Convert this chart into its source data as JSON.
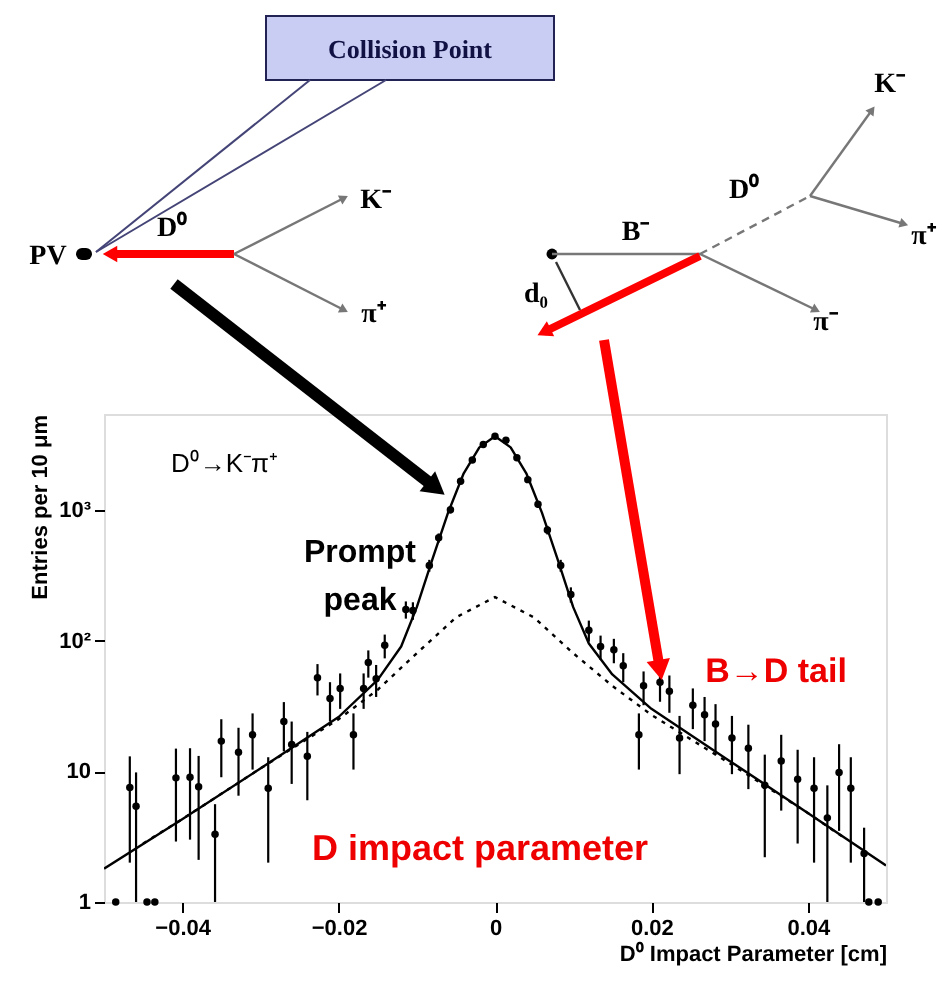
{
  "chart_data": {
    "type": "scatter",
    "xlabel": "D⁰ Impact Parameter [cm]",
    "ylabel": "Entries per 10  μm",
    "xlim": [
      -0.05,
      0.05
    ],
    "xticks": [
      -0.04,
      -0.02,
      0,
      0.02,
      0.04
    ],
    "ylim": [
      1,
      5400
    ],
    "yticks": [
      1,
      10,
      {
        "value": 100,
        "label": "10²"
      },
      {
        "value": 1000,
        "label": "10³"
      }
    ],
    "log": "y",
    "grid": false,
    "series": [
      {
        "marker": "circle",
        "color": "#000000",
        "x": [
          -0.0485,
          -0.0467,
          -0.0459,
          -0.0445,
          -0.0435,
          -0.0408,
          -0.039,
          -0.0379,
          -0.0358,
          -0.035,
          -0.0328,
          -0.031,
          -0.029,
          -0.027,
          -0.026,
          -0.024,
          -0.0227,
          -0.0211,
          -0.0198,
          -0.0181,
          -0.0168,
          -0.0162,
          -0.0152,
          -0.0141,
          -0.0114,
          -0.0105,
          -0.0084,
          -0.0072,
          -0.0057,
          -0.0044,
          -0.0029,
          -0.0015,
          0,
          0.0014,
          0.0028,
          0.0042,
          0.0055,
          0.0067,
          0.0084,
          0.0097,
          0.012,
          0.0135,
          0.0152,
          0.0164,
          0.0184,
          0.019,
          0.0211,
          0.0223,
          0.0236,
          0.0253,
          0.0268,
          0.0282,
          0.0303,
          0.0324,
          0.0345,
          0.0366,
          0.0387,
          0.0408,
          0.0425,
          0.044,
          0.0455,
          0.0472,
          0.0478,
          0.049
        ],
        "values": [
          1,
          7.5,
          5.4,
          1,
          1,
          8.9,
          9,
          7.6,
          3.3,
          17,
          14,
          19,
          7.4,
          24,
          16,
          13,
          52,
          36,
          43,
          19,
          43,
          68,
          51,
          92,
          173,
          170,
          375,
          610,
          1000,
          1650,
          2400,
          3150,
          3650,
          3400,
          2500,
          1700,
          1100,
          700,
          375,
          225,
          120,
          90,
          85,
          64,
          19,
          45,
          48,
          41,
          18,
          32,
          27,
          23,
          18,
          15,
          7.8,
          12,
          8.7,
          7.4,
          4.4,
          9.8,
          7.4,
          2.35,
          1,
          1
        ],
        "errors": [
          null,
          5.5,
          4.4,
          null,
          null,
          6,
          6,
          5.5,
          2.3,
          8,
          7.5,
          8.7,
          5.4,
          9.8,
          8,
          7,
          14,
          12,
          13,
          8.7,
          13,
          16,
          14,
          19,
          26,
          26,
          39,
          49,
          63,
          81,
          98,
          112,
          121,
          117,
          100,
          82,
          66,
          53,
          39,
          30,
          22,
          19,
          18,
          16,
          8.7,
          13,
          14,
          13,
          8.5,
          11,
          10,
          9.6,
          8.5,
          7.7,
          5.6,
          7,
          5.9,
          5.4,
          3.4,
          6.3,
          5.4,
          1.35,
          null,
          null
        ]
      },
      {
        "type": "line",
        "color": "#000000",
        "line_style": "solid",
        "x": [
          -0.05,
          -0.04,
          -0.03,
          -0.02,
          -0.015,
          -0.012,
          -0.01,
          -0.008,
          -0.006,
          -0.004,
          -0.002,
          0,
          0.002,
          0.004,
          0.006,
          0.008,
          0.01,
          0.012,
          0.015,
          0.02,
          0.03,
          0.04,
          0.05
        ],
        "values": [
          1.8,
          4.3,
          10.5,
          26,
          50,
          90,
          180,
          420,
          950,
          1900,
          3000,
          3650,
          3000,
          1900,
          950,
          420,
          180,
          95,
          55,
          30,
          12,
          4.8,
          1.9
        ]
      },
      {
        "type": "line",
        "color": "#000000",
        "line_style": "dotted",
        "x": [
          -0.045,
          -0.04,
          -0.03,
          -0.02,
          -0.015,
          -0.01,
          -0.005,
          0,
          0.005,
          0.01,
          0.015,
          0.02,
          0.03,
          0.04,
          0.045
        ],
        "values": [
          2.8,
          4.3,
          10.5,
          25,
          42,
          80,
          150,
          215,
          150,
          80,
          45,
          27,
          11.5,
          4.8,
          3
        ]
      }
    ],
    "annotations": [
      "Collision Point",
      "PV",
      "D⁰",
      "K⁻",
      "π⁺",
      "B⁻",
      "d₀",
      "D⁰",
      "K⁻",
      "π⁺",
      "π⁻",
      "D⁰→K⁻π⁺",
      "Prompt peak",
      "B→D tail",
      "D impact parameter"
    ]
  }
}
